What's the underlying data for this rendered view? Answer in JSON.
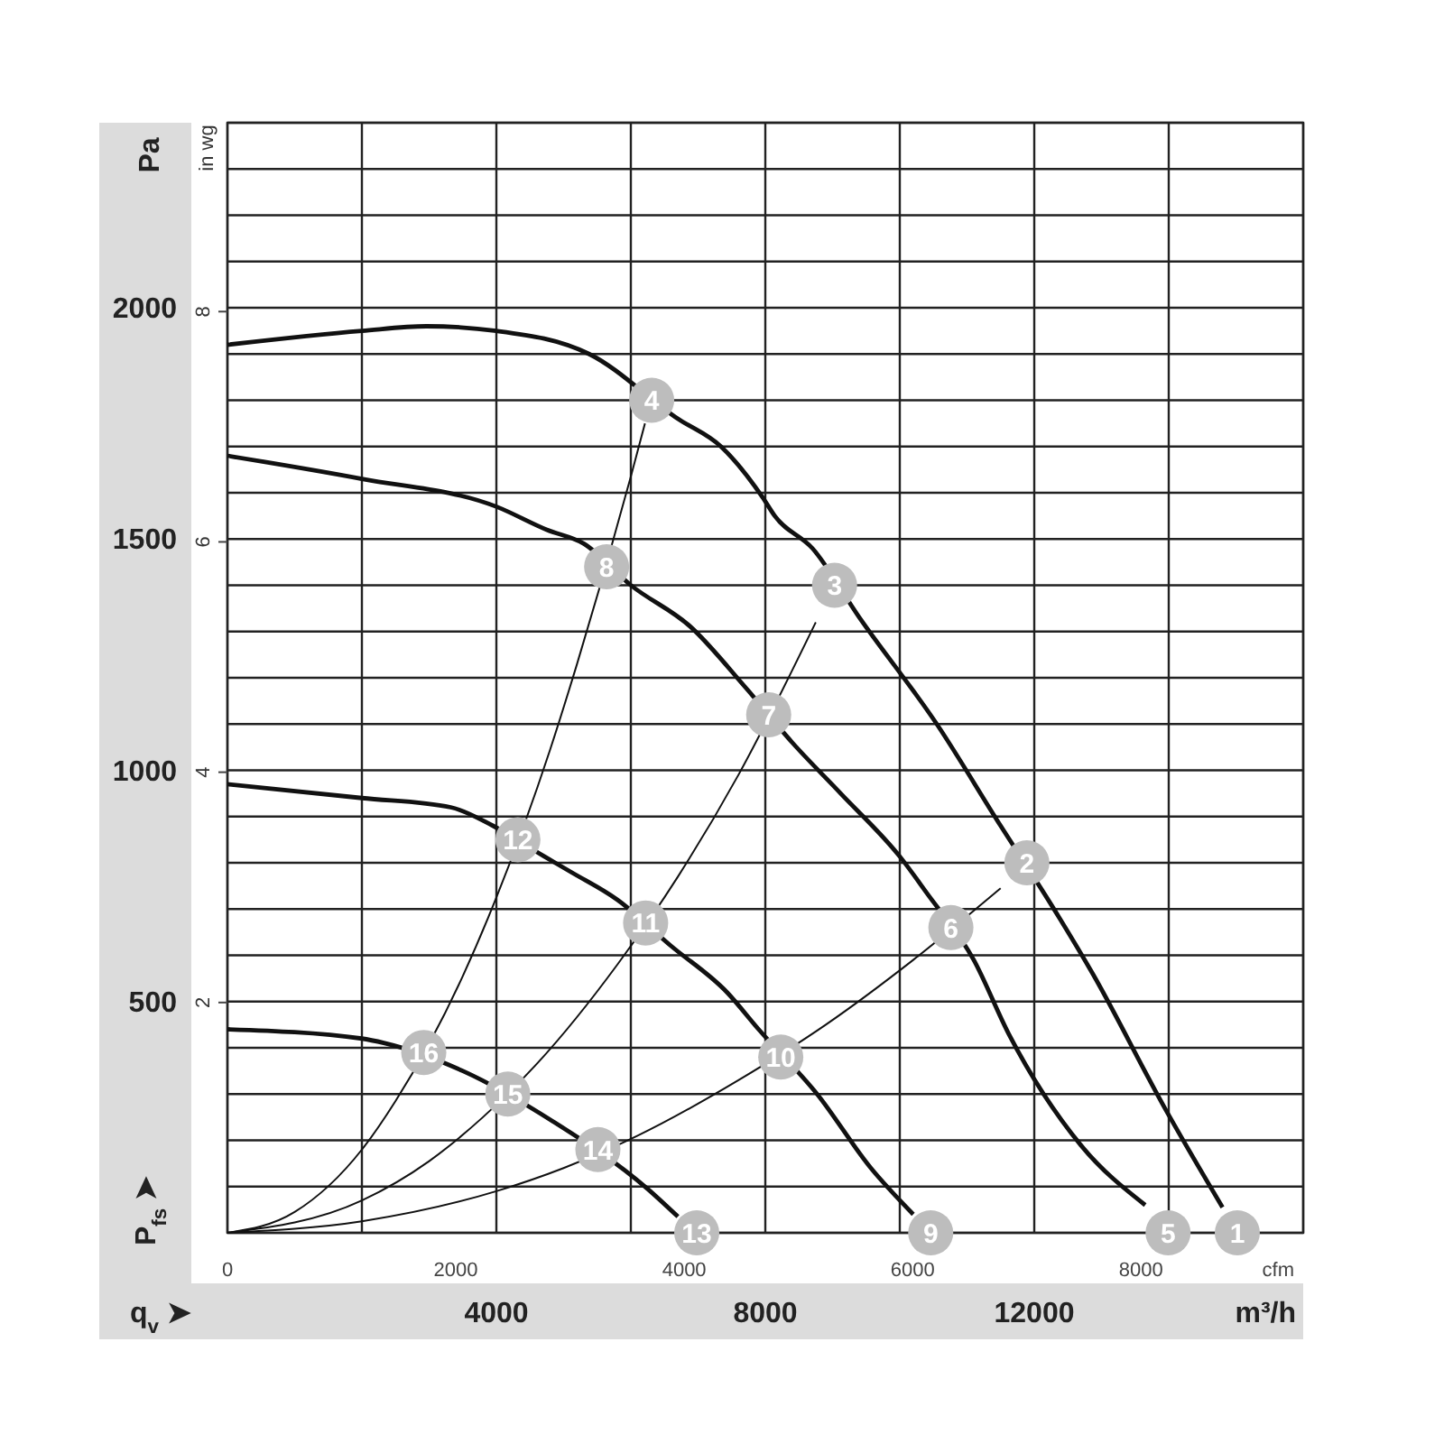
{
  "chart_data": {
    "type": "line",
    "ylabel": "Pa",
    "xlabel": "m³/h",
    "y2label": "in wg",
    "x2label": "cfm",
    "xlim": [
      0,
      16000
    ],
    "xticks": [
      {
        "value": 0,
        "label": null
      },
      {
        "value": 2000,
        "label": null
      },
      4000,
      {
        "value": 6000,
        "label": null
      },
      8000,
      {
        "value": 10000,
        "label": null
      },
      12000,
      {
        "value": 14000,
        "label": null
      },
      {
        "value": 16000,
        "label": null
      }
    ],
    "ylim": [
      0,
      2400
    ],
    "yticks": [
      {
        "value": 0,
        "label": null
      },
      {
        "value": 100,
        "label": null
      },
      {
        "value": 200,
        "label": null
      },
      {
        "value": 300,
        "label": null
      },
      {
        "value": 400,
        "label": null
      },
      500,
      {
        "value": 600,
        "label": null
      },
      {
        "value": 700,
        "label": null
      },
      {
        "value": 800,
        "label": null
      },
      {
        "value": 900,
        "label": null
      },
      1000,
      {
        "value": 1100,
        "label": null
      },
      {
        "value": 1200,
        "label": null
      },
      {
        "value": 1300,
        "label": null
      },
      {
        "value": 1400,
        "label": null
      },
      1500,
      {
        "value": 1600,
        "label": null
      },
      {
        "value": 1700,
        "label": null
      },
      {
        "value": 1800,
        "label": null
      },
      {
        "value": 1900,
        "label": null
      },
      2000,
      {
        "value": 2100,
        "label": null
      },
      {
        "value": 2200,
        "label": null
      },
      {
        "value": 2300,
        "label": null
      },
      {
        "value": 2400,
        "label": null
      }
    ],
    "x2lim": [
      0,
      9420
    ],
    "x2ticks": [
      0,
      2000,
      4000,
      6000,
      8000
    ],
    "y2lim": [
      0,
      9.64
    ],
    "y2ticks": [
      2,
      4,
      6,
      8
    ],
    "grid": true,
    "line_style": "solid",
    "series": [
      {
        "color": "#111111",
        "x": [
          0,
          2000,
          2960,
          4000,
          5380,
          6700,
          7340,
          7960,
          8140,
          8700,
          9400,
          10550,
          11500,
          12250,
          12870,
          13940,
          14800
        ],
        "values": [
          1920,
          1950,
          1960,
          1950,
          1900,
          1760,
          1700,
          1590,
          1550,
          1480,
          1330,
          1100,
          880,
          710,
          560,
          270,
          55
        ]
      },
      {
        "color": "#111111",
        "x": [
          0,
          2000,
          4000,
          4750,
          5300,
          6000,
          6890,
          7700,
          8400,
          9120,
          10020,
          10400,
          11100,
          11620,
          12690,
          13650
        ],
        "values": [
          1680,
          1630,
          1570,
          1520,
          1490,
          1400,
          1310,
          1180,
          1060,
          950,
          810,
          735,
          590,
          430,
          190,
          60
        ]
      },
      {
        "color": "#111111",
        "x": [
          0,
          2000,
          3320,
          3950,
          4700,
          5110,
          5800,
          6600,
          7430,
          7900,
          8770,
          9570,
          10200
        ],
        "values": [
          970,
          940,
          920,
          880,
          815,
          780,
          720,
          620,
          520,
          440,
          300,
          140,
          40
        ]
      },
      {
        "color": "#111111",
        "x": [
          0,
          2000,
          2340,
          3500,
          4850,
          6250,
          6700
        ],
        "values": [
          440,
          420,
          410,
          350,
          240,
          95,
          35
        ]
      },
      {
        "color": "#111111",
        "x": [
          0,
          1000,
          2000,
          2500,
          3500,
          4000,
          4800,
          5200,
          6000,
          6210
        ],
        "values": [
          0,
          45,
          180,
          285,
          555,
          725,
          1045,
          1230,
          1635,
          1750
        ]
      },
      {
        "color": "#111111",
        "x": [
          0,
          2000,
          3000,
          3800,
          4600,
          5800,
          6700,
          7600,
          8750
        ],
        "values": [
          0,
          70,
          155,
          250,
          365,
          580,
          770,
          990,
          1320
        ]
      },
      {
        "color": "#111111",
        "x": [
          0,
          2000,
          4000,
          5000,
          6100,
          7600,
          8900,
          10200,
          11500
        ],
        "values": [
          0,
          25,
          90,
          140,
          210,
          330,
          450,
          590,
          745
        ]
      }
    ],
    "annotations": [
      {
        "text": "1",
        "x": 15020,
        "y": 0
      },
      {
        "text": "2",
        "x": 11890,
        "y": 800
      },
      {
        "text": "3",
        "x": 9030,
        "y": 1400
      },
      {
        "text": "4",
        "x": 6310,
        "y": 1800
      },
      {
        "text": "5",
        "x": 13990,
        "y": 0
      },
      {
        "text": "6",
        "x": 10760,
        "y": 660
      },
      {
        "text": "7",
        "x": 8050,
        "y": 1120
      },
      {
        "text": "8",
        "x": 5640,
        "y": 1440
      },
      {
        "text": "9",
        "x": 10460,
        "y": 0
      },
      {
        "text": "10",
        "x": 8230,
        "y": 380
      },
      {
        "text": "11",
        "x": 6220,
        "y": 670
      },
      {
        "text": "12",
        "x": 4320,
        "y": 850
      },
      {
        "text": "13",
        "x": 6980,
        "y": 0
      },
      {
        "text": "14",
        "x": 5510,
        "y": 180
      },
      {
        "text": "15",
        "x": 4170,
        "y": 300
      },
      {
        "text": "16",
        "x": 2920,
        "y": 390
      },
      "P$_{fs}$ ➤",
      "q$_{v}$ ➤"
    ]
  }
}
